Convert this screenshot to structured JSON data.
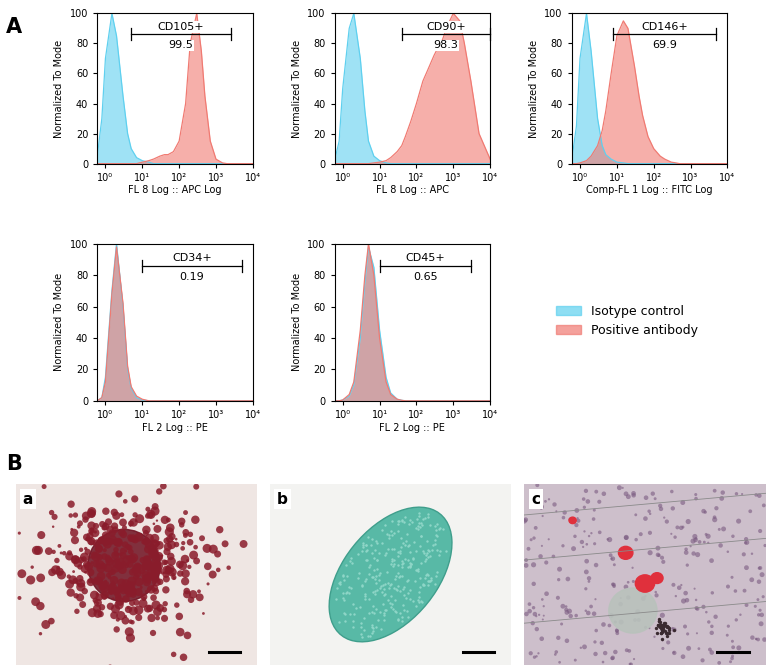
{
  "panel_labels": [
    "A",
    "B"
  ],
  "chart_data": [
    {
      "type": "area",
      "x_label": "FL 8 Log :: APC Log",
      "y_label": "Normalized To Mode",
      "log": "x",
      "x": [
        0.6,
        0.8,
        1,
        1.5,
        2,
        3,
        4,
        5,
        7,
        10,
        15,
        20,
        30,
        40,
        50,
        70,
        100,
        150,
        200,
        300,
        400,
        500,
        700,
        1000,
        1500,
        2000,
        3000,
        5000,
        10000
      ],
      "xlim": [
        0.6,
        10000
      ],
      "xticks": [
        {
          "value": 1,
          "label": "10⁰"
        },
        {
          "value": 10,
          "label": "10¹"
        },
        {
          "value": 100,
          "label": "10²"
        },
        {
          "value": 1000,
          "label": "10³"
        },
        {
          "value": 10000,
          "label": "10⁴"
        }
      ],
      "ylim": [
        0,
        100
      ],
      "yticks": [
        0,
        20,
        40,
        60,
        80,
        100
      ],
      "gate": {
        "name": "CD105+",
        "value": 99.5,
        "range": [
          5,
          2500
        ]
      },
      "series": [
        {
          "name": "Isotype control",
          "color": "#5fd0ef",
          "values": [
            5,
            30,
            70,
            100,
            85,
            45,
            20,
            10,
            4,
            2,
            1,
            0,
            0,
            0,
            0,
            0,
            0,
            0,
            0,
            0,
            0,
            0,
            0,
            0,
            0,
            0,
            0,
            0,
            0
          ]
        },
        {
          "name": "Positive antibody",
          "color": "#f07a72",
          "values": [
            0,
            0,
            0,
            0,
            0,
            0,
            0,
            0,
            0,
            1,
            2,
            3,
            5,
            6,
            6,
            8,
            15,
            40,
            80,
            100,
            75,
            45,
            15,
            3,
            0.5,
            0,
            0,
            0,
            0
          ]
        }
      ]
    },
    {
      "type": "area",
      "x_label": "FL 8 Log :: APC",
      "y_label": "Normalized To Mode",
      "log": "x",
      "x": [
        0.6,
        0.8,
        1,
        1.5,
        2,
        3,
        4,
        5,
        7,
        10,
        15,
        20,
        30,
        40,
        50,
        70,
        100,
        150,
        200,
        300,
        400,
        500,
        700,
        1000,
        1500,
        2000,
        3000,
        5000,
        10000
      ],
      "xlim": [
        0.6,
        10000
      ],
      "xticks": [
        {
          "value": 1,
          "label": "10⁰"
        },
        {
          "value": 10,
          "label": "10¹"
        },
        {
          "value": 100,
          "label": "10²"
        },
        {
          "value": 1000,
          "label": "10³"
        },
        {
          "value": 10000,
          "label": "10⁴"
        }
      ],
      "ylim": [
        0,
        100
      ],
      "yticks": [
        0,
        20,
        40,
        60,
        80,
        100
      ],
      "gate": {
        "name": "CD90+",
        "value": 98.3,
        "range": [
          40,
          10000
        ]
      },
      "series": [
        {
          "name": "Isotype control",
          "color": "#5fd0ef",
          "values": [
            2,
            15,
            50,
            90,
            100,
            70,
            35,
            15,
            5,
            2,
            0.5,
            0,
            0,
            0,
            0,
            0,
            0,
            0,
            0,
            0,
            0,
            0,
            0,
            0,
            0,
            0,
            0,
            0,
            0
          ]
        },
        {
          "name": "Positive antibody",
          "color": "#f07a72",
          "values": [
            0,
            0,
            0,
            0,
            0,
            0,
            0,
            0,
            0.5,
            1,
            2,
            4,
            8,
            12,
            18,
            28,
            40,
            55,
            62,
            72,
            78,
            82,
            92,
            100,
            95,
            80,
            55,
            20,
            3
          ]
        }
      ]
    },
    {
      "type": "area",
      "x_label": "Comp-FL 1 Log :: FITC Log",
      "y_label": "Normalized To Mode",
      "log": "x",
      "x": [
        0.6,
        0.8,
        1,
        1.5,
        2,
        3,
        4,
        5,
        7,
        10,
        15,
        20,
        30,
        40,
        50,
        70,
        100,
        150,
        200,
        300,
        400,
        500,
        700,
        1000,
        1500,
        2000,
        3000,
        5000,
        10000
      ],
      "xlim": [
        0.6,
        10000
      ],
      "xticks": [
        {
          "value": 1,
          "label": "10⁰"
        },
        {
          "value": 10,
          "label": "10¹"
        },
        {
          "value": 100,
          "label": "10²"
        },
        {
          "value": 1000,
          "label": "10³"
        },
        {
          "value": 10000,
          "label": "10⁴"
        }
      ],
      "ylim": [
        0,
        100
      ],
      "yticks": [
        0,
        20,
        40,
        60,
        80,
        100
      ],
      "gate": {
        "name": "CD146+",
        "value": 69.9,
        "range": [
          8,
          5000
        ]
      },
      "series": [
        {
          "name": "Isotype control",
          "color": "#5fd0ef",
          "values": [
            3,
            25,
            70,
            100,
            75,
            30,
            12,
            6,
            3,
            1,
            0.5,
            0,
            0,
            0,
            0,
            0,
            0,
            0,
            0,
            0,
            0,
            0,
            0,
            0,
            0,
            0,
            0,
            0,
            0
          ]
        },
        {
          "name": "Positive antibody",
          "color": "#f07a72",
          "values": [
            0,
            0,
            0.5,
            2,
            5,
            12,
            22,
            35,
            60,
            85,
            95,
            90,
            65,
            45,
            32,
            18,
            10,
            5,
            3,
            1,
            0.5,
            0,
            0,
            0,
            0,
            0,
            0,
            0,
            0
          ]
        }
      ]
    },
    {
      "type": "area",
      "x_label": "FL 2 Log :: PE",
      "y_label": "Normalized To Mode",
      "log": "x",
      "x": [
        0.6,
        0.8,
        1,
        1.5,
        2,
        3,
        4,
        5,
        7,
        10,
        15,
        20,
        30,
        40,
        50,
        70,
        100,
        150,
        200,
        300,
        400,
        500,
        700,
        1000,
        1500,
        2000,
        3000,
        5000,
        10000
      ],
      "xlim": [
        0.6,
        10000
      ],
      "xticks": [
        {
          "value": 1,
          "label": "10⁰"
        },
        {
          "value": 10,
          "label": "10¹"
        },
        {
          "value": 100,
          "label": "10²"
        },
        {
          "value": 1000,
          "label": "10³"
        },
        {
          "value": 10000,
          "label": "10⁴"
        }
      ],
      "ylim": [
        0,
        100
      ],
      "yticks": [
        0,
        20,
        40,
        60,
        80,
        100
      ],
      "gate": {
        "name": "CD34+",
        "value": 0.19,
        "range": [
          10,
          5000
        ]
      },
      "series": [
        {
          "name": "Isotype control",
          "color": "#5fd0ef",
          "values": [
            0,
            2,
            15,
            70,
            100,
            60,
            20,
            8,
            2,
            0.5,
            0,
            0,
            0,
            0,
            0,
            0,
            0,
            0,
            0,
            0,
            0,
            0,
            0,
            0,
            0,
            0,
            0,
            0,
            0
          ]
        },
        {
          "name": "Positive antibody",
          "color": "#f07a72",
          "values": [
            0,
            2,
            12,
            68,
            98,
            62,
            22,
            9,
            3,
            1,
            0,
            0,
            0,
            0,
            0,
            0,
            0,
            0,
            0,
            0,
            0,
            0,
            0,
            0,
            0,
            0,
            0,
            0,
            0
          ]
        }
      ]
    },
    {
      "type": "area",
      "x_label": "FL 2 Log :: PE",
      "y_label": "Normalized To Mode",
      "log": "x",
      "x": [
        0.6,
        0.8,
        1,
        1.5,
        2,
        3,
        4,
        5,
        7,
        10,
        15,
        20,
        30,
        40,
        50,
        70,
        100,
        150,
        200,
        300,
        400,
        500,
        700,
        1000,
        1500,
        2000,
        3000,
        5000,
        10000
      ],
      "xlim": [
        0.6,
        10000
      ],
      "xticks": [
        {
          "value": 1,
          "label": "10⁰"
        },
        {
          "value": 10,
          "label": "10¹"
        },
        {
          "value": 100,
          "label": "10²"
        },
        {
          "value": 1000,
          "label": "10³"
        },
        {
          "value": 10000,
          "label": "10⁴"
        }
      ],
      "ylim": [
        0,
        100
      ],
      "yticks": [
        0,
        20,
        40,
        60,
        80,
        100
      ],
      "gate": {
        "name": "CD45+",
        "value": 0.65,
        "range": [
          10,
          3000
        ]
      },
      "series": [
        {
          "name": "Isotype control",
          "color": "#5fd0ef",
          "values": [
            0,
            0,
            0.5,
            3,
            10,
            40,
            75,
            98,
            85,
            45,
            15,
            5,
            1,
            0.3,
            0,
            0,
            0,
            0,
            0,
            0,
            0,
            0,
            0,
            0,
            0,
            0,
            0,
            0,
            0
          ]
        },
        {
          "name": "Positive antibody",
          "color": "#f07a72",
          "values": [
            0,
            0,
            0.5,
            4,
            12,
            45,
            80,
            100,
            80,
            40,
            12,
            4,
            1,
            0.3,
            0,
            0,
            0,
            0,
            0,
            0,
            0,
            0,
            0,
            0,
            0,
            0,
            0,
            0,
            0
          ]
        }
      ]
    }
  ],
  "images": [
    {
      "label": "a"
    },
    {
      "label": "b"
    },
    {
      "label": "c"
    }
  ]
}
